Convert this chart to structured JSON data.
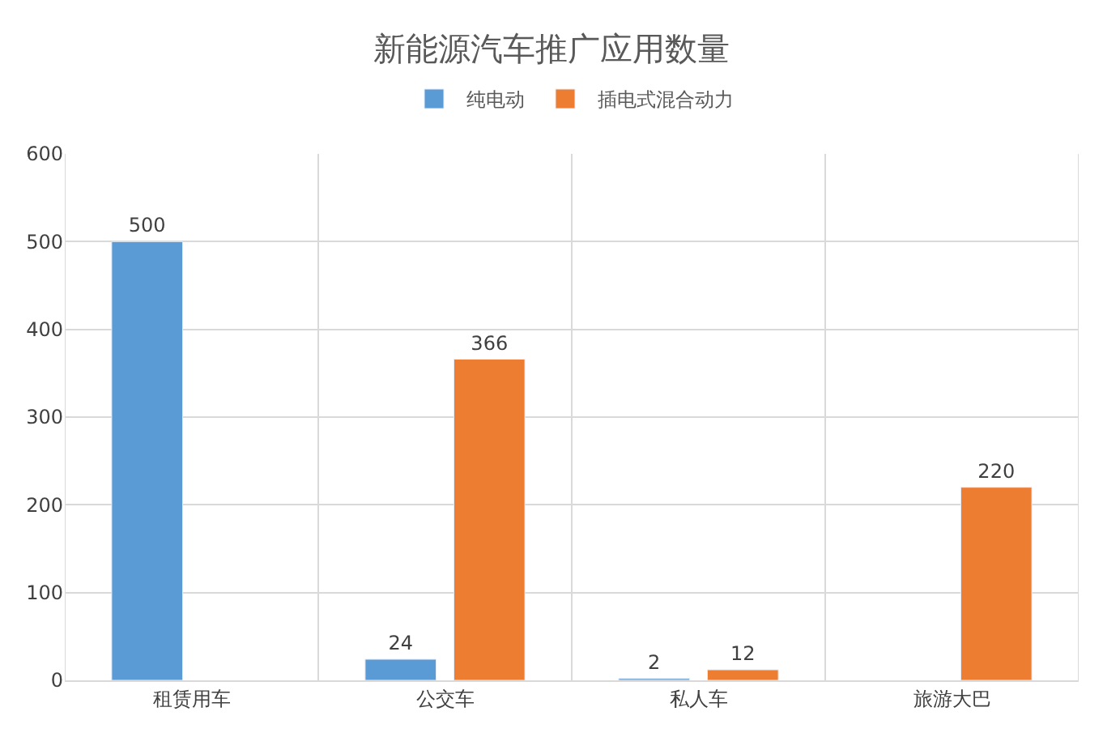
{
  "chart_data": {
    "type": "bar",
    "title": "新能源汽车推广应用数量",
    "categories": [
      "租赁用车",
      "公交车",
      "私人车",
      "旅游大巴"
    ],
    "series": [
      {
        "name": "纯电动",
        "color": "#5b9bd5",
        "values": [
          500,
          24,
          2,
          null
        ]
      },
      {
        "name": "插电式混合动力",
        "color": "#ed7d31",
        "values": [
          null,
          366,
          12,
          220
        ]
      }
    ],
    "ylim": [
      0,
      600
    ],
    "yticks": [
      0,
      100,
      200,
      300,
      400,
      500,
      600
    ],
    "grid": true,
    "legend": "top",
    "data_labels": true
  }
}
